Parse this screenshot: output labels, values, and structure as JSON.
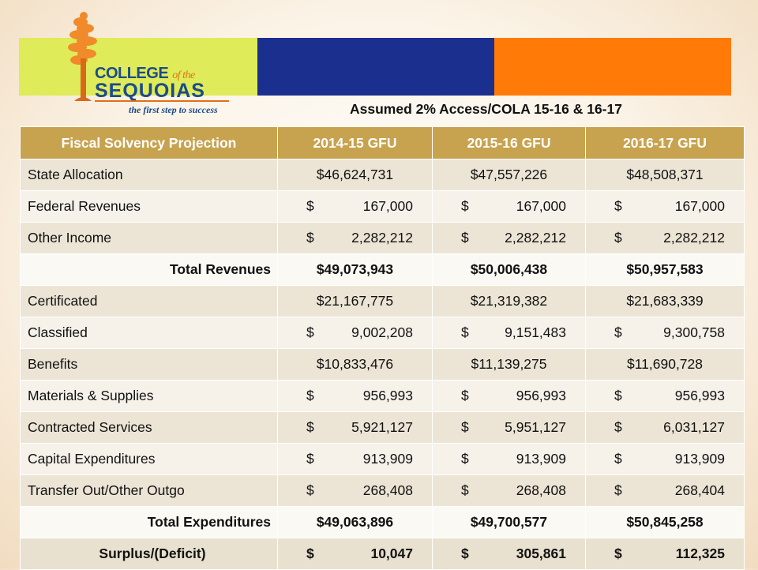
{
  "logo": {
    "line1_main": "COLLEGE",
    "line1_small": "of the",
    "line2": "SEQUOIAS",
    "tagline": "the first step to success"
  },
  "subtitle": "Assumed 2% Access/COLA 15-16 & 16-17",
  "table": {
    "headers": [
      "Fiscal Solvency Projection",
      "2014-15 GFU",
      "2015-16 GFU",
      "2016-17 GFU"
    ],
    "rows": [
      {
        "label": "State Allocation",
        "values": [
          [
            "",
            "$46,624,731"
          ],
          [
            "",
            "$47,557,226"
          ],
          [
            "",
            "$48,508,371"
          ]
        ]
      },
      {
        "label": "Federal Revenues",
        "values": [
          [
            "$",
            "167,000"
          ],
          [
            "$",
            "167,000"
          ],
          [
            "$",
            "167,000"
          ]
        ]
      },
      {
        "label": "Other Income",
        "values": [
          [
            "$",
            "2,282,212"
          ],
          [
            "$",
            "2,282,212"
          ],
          [
            "$",
            "2,282,212"
          ]
        ]
      },
      {
        "label": "Total Revenues",
        "values": [
          [
            "",
            "$49,073,943"
          ],
          [
            "",
            "$50,006,438"
          ],
          [
            "",
            "$50,957,583"
          ]
        ]
      },
      {
        "label": "Certificated",
        "values": [
          [
            "",
            "$21,167,775"
          ],
          [
            "",
            "$21,319,382"
          ],
          [
            "",
            "$21,683,339"
          ]
        ]
      },
      {
        "label": "Classified",
        "values": [
          [
            "$",
            "9,002,208"
          ],
          [
            "$",
            "9,151,483"
          ],
          [
            "$",
            "9,300,758"
          ]
        ]
      },
      {
        "label": "Benefits",
        "values": [
          [
            "",
            "$10,833,476"
          ],
          [
            "",
            "$11,139,275"
          ],
          [
            "",
            "$11,690,728"
          ]
        ]
      },
      {
        "label": "Materials & Supplies",
        "values": [
          [
            "$",
            "956,993"
          ],
          [
            "$",
            "956,993"
          ],
          [
            "$",
            "956,993"
          ]
        ]
      },
      {
        "label": "Contracted Services",
        "values": [
          [
            "$",
            "5,921,127"
          ],
          [
            "$",
            "5,951,127"
          ],
          [
            "$",
            "6,031,127"
          ]
        ]
      },
      {
        "label": "Capital Expenditures",
        "values": [
          [
            "$",
            "913,909"
          ],
          [
            "$",
            "913,909"
          ],
          [
            "$",
            "913,909"
          ]
        ]
      },
      {
        "label": "Transfer Out/Other Outgo",
        "values": [
          [
            "$",
            "268,408"
          ],
          [
            "$",
            "268,408"
          ],
          [
            "$",
            "268,404"
          ]
        ]
      },
      {
        "label": "Total Expenditures",
        "values": [
          [
            "",
            "$49,063,896"
          ],
          [
            "",
            "$49,700,577"
          ],
          [
            "",
            "$50,845,258"
          ]
        ]
      },
      {
        "label": "Surplus/(Deficit)",
        "values": [
          [
            "$",
            "10,047"
          ],
          [
            "$",
            "305,861"
          ],
          [
            "$",
            "112,325"
          ]
        ]
      }
    ]
  },
  "colors": {
    "header_gold": "#c8a34f",
    "bar_lime": "#dfeb58",
    "bar_blue": "#1b2f8f",
    "bar_orange": "#ff7a06",
    "logo_blue": "#1b4a8c",
    "logo_orange": "#e0701a"
  }
}
